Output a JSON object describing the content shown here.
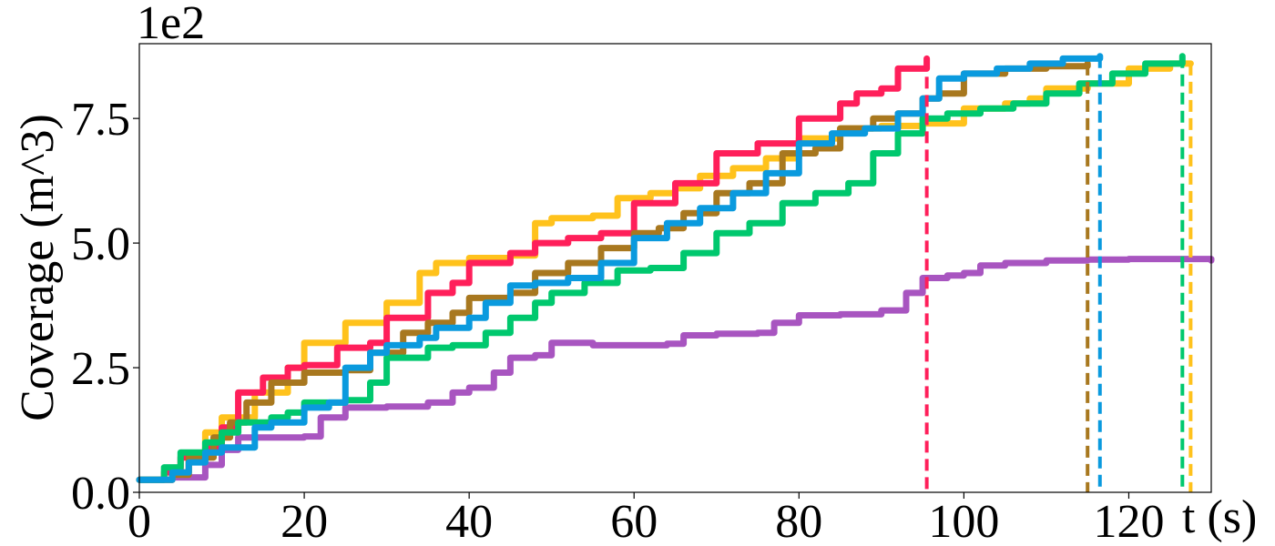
{
  "chart_data": {
    "type": "line",
    "title": "",
    "xlabel": "t (s)",
    "ylabel": "Coverage (m^3)",
    "y_scale_label": "1e2",
    "xlim": [
      0,
      130
    ],
    "ylim": [
      0,
      900
    ],
    "x_ticks": [
      0,
      20,
      40,
      60,
      80,
      100,
      120
    ],
    "x_tick_labels": [
      "0",
      "20",
      "40",
      "60",
      "80",
      "100",
      "120"
    ],
    "y_ticks": [
      0,
      250,
      500,
      750
    ],
    "y_tick_labels": [
      "0.0",
      "2.5",
      "5.0",
      "7.5"
    ],
    "grid": false,
    "legend": "none",
    "series": [
      {
        "color": "#a855c0",
        "end_time": null,
        "points": [
          [
            0,
            25
          ],
          [
            4,
            30
          ],
          [
            8,
            55
          ],
          [
            10,
            85
          ],
          [
            12,
            110
          ],
          [
            16,
            110
          ],
          [
            20,
            112
          ],
          [
            22,
            150
          ],
          [
            25,
            170
          ],
          [
            30,
            172
          ],
          [
            35,
            180
          ],
          [
            38,
            200
          ],
          [
            40,
            210
          ],
          [
            43,
            240
          ],
          [
            45,
            270
          ],
          [
            48,
            275
          ],
          [
            50,
            300
          ],
          [
            55,
            295
          ],
          [
            60,
            295
          ],
          [
            64,
            298
          ],
          [
            66,
            315
          ],
          [
            70,
            318
          ],
          [
            75,
            320
          ],
          [
            77,
            340
          ],
          [
            80,
            355
          ],
          [
            85,
            357
          ],
          [
            90,
            365
          ],
          [
            93,
            400
          ],
          [
            95,
            430
          ],
          [
            98,
            435
          ],
          [
            100,
            440
          ],
          [
            102,
            455
          ],
          [
            105,
            460
          ],
          [
            110,
            465
          ],
          [
            115,
            467
          ],
          [
            120,
            468
          ],
          [
            125,
            468
          ],
          [
            130,
            465
          ]
        ]
      },
      {
        "color": "#ffc21c",
        "end_time": 127.5,
        "points": [
          [
            0,
            25
          ],
          [
            4,
            40
          ],
          [
            6,
            70
          ],
          [
            8,
            120
          ],
          [
            10,
            150
          ],
          [
            14,
            200
          ],
          [
            18,
            250
          ],
          [
            20,
            300
          ],
          [
            25,
            340
          ],
          [
            30,
            380
          ],
          [
            34,
            440
          ],
          [
            36,
            460
          ],
          [
            40,
            470
          ],
          [
            45,
            475
          ],
          [
            48,
            540
          ],
          [
            50,
            550
          ],
          [
            55,
            555
          ],
          [
            58,
            590
          ],
          [
            62,
            600
          ],
          [
            65,
            610
          ],
          [
            68,
            635
          ],
          [
            72,
            650
          ],
          [
            76,
            670
          ],
          [
            80,
            710
          ],
          [
            85,
            730
          ],
          [
            90,
            735
          ],
          [
            95,
            740
          ],
          [
            100,
            770
          ],
          [
            105,
            780
          ],
          [
            108,
            790
          ],
          [
            110,
            810
          ],
          [
            115,
            820
          ],
          [
            120,
            850
          ],
          [
            125,
            860
          ],
          [
            127.5,
            860
          ]
        ]
      },
      {
        "color": "#ff1f5a",
        "end_time": 95.5,
        "points": [
          [
            0,
            25
          ],
          [
            3,
            40
          ],
          [
            5,
            70
          ],
          [
            8,
            90
          ],
          [
            10,
            130
          ],
          [
            12,
            200
          ],
          [
            15,
            230
          ],
          [
            18,
            250
          ],
          [
            20,
            255
          ],
          [
            24,
            290
          ],
          [
            28,
            300
          ],
          [
            30,
            350
          ],
          [
            35,
            400
          ],
          [
            38,
            420
          ],
          [
            40,
            460
          ],
          [
            45,
            480
          ],
          [
            48,
            500
          ],
          [
            52,
            510
          ],
          [
            56,
            520
          ],
          [
            60,
            580
          ],
          [
            65,
            620
          ],
          [
            70,
            680
          ],
          [
            75,
            700
          ],
          [
            80,
            750
          ],
          [
            85,
            780
          ],
          [
            87,
            800
          ],
          [
            90,
            810
          ],
          [
            92,
            850
          ],
          [
            95.5,
            870
          ]
        ]
      },
      {
        "color": "#a8781f",
        "end_time": 115,
        "points": [
          [
            0,
            25
          ],
          [
            4,
            35
          ],
          [
            6,
            70
          ],
          [
            9,
            110
          ],
          [
            11,
            140
          ],
          [
            13,
            180
          ],
          [
            16,
            220
          ],
          [
            20,
            240
          ],
          [
            25,
            245
          ],
          [
            28,
            280
          ],
          [
            32,
            320
          ],
          [
            35,
            340
          ],
          [
            38,
            360
          ],
          [
            40,
            390
          ],
          [
            45,
            400
          ],
          [
            48,
            440
          ],
          [
            52,
            460
          ],
          [
            56,
            490
          ],
          [
            60,
            520
          ],
          [
            63,
            530
          ],
          [
            66,
            560
          ],
          [
            70,
            600
          ],
          [
            74,
            620
          ],
          [
            78,
            680
          ],
          [
            82,
            690
          ],
          [
            85,
            730
          ],
          [
            89,
            750
          ],
          [
            92,
            760
          ],
          [
            95,
            790
          ],
          [
            97,
            800
          ],
          [
            100,
            840
          ],
          [
            105,
            850
          ],
          [
            110,
            855
          ],
          [
            115,
            860
          ]
        ]
      },
      {
        "color": "#00c86e",
        "end_time": 126.5,
        "points": [
          [
            0,
            25
          ],
          [
            3,
            50
          ],
          [
            5,
            80
          ],
          [
            8,
            100
          ],
          [
            10,
            120
          ],
          [
            12,
            140
          ],
          [
            16,
            150
          ],
          [
            18,
            160
          ],
          [
            20,
            180
          ],
          [
            25,
            185
          ],
          [
            28,
            220
          ],
          [
            30,
            270
          ],
          [
            35,
            290
          ],
          [
            38,
            295
          ],
          [
            42,
            320
          ],
          [
            45,
            350
          ],
          [
            48,
            380
          ],
          [
            50,
            400
          ],
          [
            54,
            420
          ],
          [
            58,
            445
          ],
          [
            62,
            450
          ],
          [
            66,
            480
          ],
          [
            70,
            520
          ],
          [
            74,
            540
          ],
          [
            78,
            580
          ],
          [
            82,
            600
          ],
          [
            86,
            620
          ],
          [
            89,
            680
          ],
          [
            92,
            720
          ],
          [
            95,
            750
          ],
          [
            98,
            760
          ],
          [
            102,
            770
          ],
          [
            106,
            780
          ],
          [
            110,
            800
          ],
          [
            114,
            820
          ],
          [
            118,
            840
          ],
          [
            122,
            860
          ],
          [
            126.5,
            875
          ]
        ]
      },
      {
        "color": "#0a9ade",
        "end_time": 116.5,
        "points": [
          [
            0,
            25
          ],
          [
            4,
            40
          ],
          [
            6,
            60
          ],
          [
            8,
            80
          ],
          [
            10,
            90
          ],
          [
            14,
            130
          ],
          [
            16,
            140
          ],
          [
            20,
            170
          ],
          [
            23,
            180
          ],
          [
            25,
            250
          ],
          [
            28,
            280
          ],
          [
            30,
            295
          ],
          [
            34,
            310
          ],
          [
            36,
            330
          ],
          [
            40,
            350
          ],
          [
            42,
            380
          ],
          [
            45,
            415
          ],
          [
            48,
            420
          ],
          [
            52,
            430
          ],
          [
            56,
            460
          ],
          [
            60,
            510
          ],
          [
            64,
            540
          ],
          [
            68,
            570
          ],
          [
            72,
            600
          ],
          [
            76,
            640
          ],
          [
            80,
            700
          ],
          [
            84,
            720
          ],
          [
            88,
            730
          ],
          [
            92,
            760
          ],
          [
            95,
            790
          ],
          [
            97,
            830
          ],
          [
            100,
            840
          ],
          [
            104,
            850
          ],
          [
            108,
            860
          ],
          [
            112,
            870
          ],
          [
            116.5,
            875
          ]
        ]
      }
    ]
  }
}
